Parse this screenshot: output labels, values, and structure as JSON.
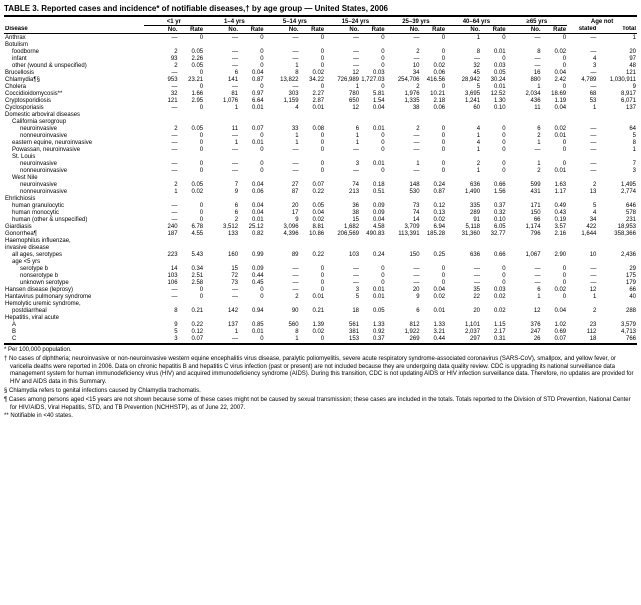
{
  "title": "TABLE 3. Reported cases and incidence* of notifiable diseases,† by age group — United States, 2006",
  "age_groups": [
    "<1 yr",
    "1–4 yrs",
    "5–14 yrs",
    "15–24 yrs",
    "25–39 yrs",
    "40–64 yrs",
    "≥65 yrs",
    "Age not"
  ],
  "sub_headers": [
    "No.",
    "Rate",
    "No.",
    "Rate",
    "No.",
    "Rate",
    "No.",
    "Rate",
    "No.",
    "Rate",
    "No.",
    "Rate",
    "No.",
    "Rate",
    "stated",
    "Total"
  ],
  "disease_label": "Disease",
  "rows": [
    {
      "name": "Anthrax",
      "indent": 0,
      "cells": [
        "—",
        "0",
        "—",
        "0",
        "—",
        "0",
        "—",
        "0",
        "—",
        "0",
        "1",
        "0",
        "—",
        "0",
        "—",
        "1"
      ]
    },
    {
      "name": "Botulism",
      "indent": 0,
      "cells": [
        "",
        "",
        "",
        "",
        "",
        "",
        "",
        "",
        "",
        "",
        "",
        "",
        "",
        "",
        "",
        ""
      ]
    },
    {
      "name": "foodborne",
      "indent": 1,
      "cells": [
        "2",
        "0.05",
        "—",
        "0",
        "—",
        "0",
        "—",
        "0",
        "2",
        "0",
        "8",
        "0.01",
        "8",
        "0.02",
        "—",
        "20"
      ]
    },
    {
      "name": "infant",
      "indent": 1,
      "cells": [
        "93",
        "2.26",
        "—",
        "0",
        "—",
        "0",
        "—",
        "0",
        "—",
        "0",
        "—",
        "0",
        "—",
        "0",
        "4",
        "97"
      ]
    },
    {
      "name": "other (wound & unspecified)",
      "indent": 1,
      "cells": [
        "2",
        "0.05",
        "—",
        "0",
        "1",
        "0",
        "—",
        "0",
        "10",
        "0.02",
        "32",
        "0.03",
        "—",
        "0",
        "3",
        "48"
      ]
    },
    {
      "name": "Brucellosis",
      "indent": 0,
      "cells": [
        "—",
        "0",
        "6",
        "0.04",
        "8",
        "0.02",
        "12",
        "0.03",
        "34",
        "0.06",
        "45",
        "0.05",
        "16",
        "0.04",
        "—",
        "121"
      ]
    },
    {
      "name": "Chlamydia¶§",
      "indent": 0,
      "cells": [
        "953",
        "23.21",
        "141",
        "0.87",
        "13,822",
        "34.22",
        "726,989",
        "1,727.03",
        "254,706",
        "416.56",
        "28,942",
        "30.24",
        "880",
        "2.42",
        "4,789",
        "1,030,911"
      ]
    },
    {
      "name": "Cholera",
      "indent": 0,
      "cells": [
        "—",
        "0",
        "—",
        "0",
        "—",
        "0",
        "1",
        "0",
        "2",
        "0",
        "5",
        "0.01",
        "1",
        "0",
        "—",
        "9"
      ]
    },
    {
      "name": "Coccidioidomycosis**",
      "indent": 0,
      "cells": [
        "32",
        "1.66",
        "81",
        "0.97",
        "303",
        "2.27",
        "780",
        "5.81",
        "1,976",
        "10.21",
        "3,695",
        "12.52",
        "2,034",
        "18.69",
        "68",
        "8,917"
      ]
    },
    {
      "name": "Cryptosporidiosis",
      "indent": 0,
      "cells": [
        "121",
        "2.95",
        "1,076",
        "6.64",
        "1,159",
        "2.87",
        "650",
        "1.54",
        "1,335",
        "2.18",
        "1,241",
        "1.30",
        "436",
        "1.19",
        "53",
        "6,071"
      ]
    },
    {
      "name": "Cyclosporiasis",
      "indent": 0,
      "cells": [
        "—",
        "0",
        "1",
        "0.01",
        "4",
        "0.01",
        "12",
        "0.04",
        "38",
        "0.06",
        "60",
        "0.10",
        "11",
        "0.04",
        "1",
        "137"
      ]
    },
    {
      "name": "Domestic arboviral diseases",
      "indent": 0,
      "cells": [
        "",
        "",
        "",
        "",
        "",
        "",
        "",
        "",
        "",
        "",
        "",
        "",
        "",
        "",
        "",
        ""
      ]
    },
    {
      "name": "California serogroup",
      "indent": 1,
      "cells": [
        "",
        "",
        "",
        "",
        "",
        "",
        "",
        "",
        "",
        "",
        "",
        "",
        "",
        "",
        "",
        ""
      ]
    },
    {
      "name": "neuroinvasive",
      "indent": 2,
      "cells": [
        "2",
        "0.05",
        "11",
        "0.07",
        "33",
        "0.08",
        "6",
        "0.01",
        "2",
        "0",
        "4",
        "0",
        "6",
        "0.02",
        "—",
        "64"
      ]
    },
    {
      "name": "nonneuroinvasive",
      "indent": 2,
      "cells": [
        "—",
        "0",
        "—",
        "0",
        "1",
        "0",
        "1",
        "0",
        "—",
        "0",
        "1",
        "0",
        "2",
        "0.01",
        "—",
        "5"
      ]
    },
    {
      "name": "eastern equine, neuroinvasive",
      "indent": 1,
      "cells": [
        "—",
        "0",
        "1",
        "0.01",
        "1",
        "0",
        "1",
        "0",
        "—",
        "0",
        "4",
        "0",
        "1",
        "0",
        "—",
        "8"
      ]
    },
    {
      "name": "Powassan, neuroinvasive",
      "indent": 1,
      "cells": [
        "—",
        "0",
        "—",
        "0",
        "—",
        "0",
        "—",
        "0",
        "—",
        "0",
        "1",
        "0",
        "—",
        "0",
        "—",
        "1"
      ]
    },
    {
      "name": "St. Louis",
      "indent": 1,
      "cells": [
        "",
        "",
        "",
        "",
        "",
        "",
        "",
        "",
        "",
        "",
        "",
        "",
        "",
        "",
        "",
        ""
      ]
    },
    {
      "name": "neuroinvasive",
      "indent": 2,
      "cells": [
        "—",
        "0",
        "—",
        "0",
        "—",
        "0",
        "3",
        "0.01",
        "1",
        "0",
        "2",
        "0",
        "1",
        "0",
        "—",
        "7"
      ]
    },
    {
      "name": "nonneuroinvasive",
      "indent": 2,
      "cells": [
        "—",
        "0",
        "—",
        "0",
        "—",
        "0",
        "—",
        "0",
        "—",
        "0",
        "1",
        "0",
        "2",
        "0.01",
        "—",
        "3"
      ]
    },
    {
      "name": "West Nile",
      "indent": 1,
      "cells": [
        "",
        "",
        "",
        "",
        "",
        "",
        "",
        "",
        "",
        "",
        "",
        "",
        "",
        "",
        "",
        ""
      ]
    },
    {
      "name": "neuroinvasive",
      "indent": 2,
      "cells": [
        "2",
        "0.05",
        "7",
        "0.04",
        "27",
        "0.07",
        "74",
        "0.18",
        "148",
        "0.24",
        "636",
        "0.66",
        "599",
        "1.63",
        "2",
        "1,495"
      ]
    },
    {
      "name": "nonneuroinvasive",
      "indent": 2,
      "cells": [
        "1",
        "0.02",
        "9",
        "0.06",
        "87",
        "0.22",
        "213",
        "0.51",
        "530",
        "0.87",
        "1,490",
        "1.56",
        "431",
        "1.17",
        "13",
        "2,774"
      ]
    },
    {
      "name": "Ehrlichiosis",
      "indent": 0,
      "cells": [
        "",
        "",
        "",
        "",
        "",
        "",
        "",
        "",
        "",
        "",
        "",
        "",
        "",
        "",
        "",
        ""
      ]
    },
    {
      "name": "human granulocytic",
      "indent": 1,
      "cells": [
        "—",
        "0",
        "6",
        "0.04",
        "20",
        "0.05",
        "36",
        "0.09",
        "73",
        "0.12",
        "335",
        "0.37",
        "171",
        "0.49",
        "5",
        "646"
      ]
    },
    {
      "name": "human monocytic",
      "indent": 1,
      "cells": [
        "—",
        "0",
        "6",
        "0.04",
        "17",
        "0.04",
        "38",
        "0.09",
        "74",
        "0.13",
        "289",
        "0.32",
        "150",
        "0.43",
        "4",
        "578"
      ]
    },
    {
      "name": "human (other & unspecified)",
      "indent": 1,
      "cells": [
        "—",
        "0",
        "2",
        "0.01",
        "9",
        "0.02",
        "15",
        "0.04",
        "14",
        "0.02",
        "91",
        "0.10",
        "66",
        "0.19",
        "34",
        "231"
      ]
    },
    {
      "name": "Giardiasis",
      "indent": 0,
      "cells": [
        "240",
        "6.78",
        "3,512",
        "25.12",
        "3,096",
        "8.81",
        "1,682",
        "4.58",
        "3,709",
        "6.94",
        "5,118",
        "6.05",
        "1,174",
        "3.57",
        "422",
        "18,953"
      ]
    },
    {
      "name": "Gonorrhea¶",
      "indent": 0,
      "cells": [
        "187",
        "4.55",
        "133",
        "0.82",
        "4,396",
        "10.86",
        "206,569",
        "490.83",
        "113,391",
        "185.28",
        "31,360",
        "32.77",
        "796",
        "2.16",
        "1,644",
        "358,366"
      ]
    },
    {
      "name": "Haemophilus influenzae,",
      "indent": 0,
      "cells": [
        "",
        "",
        "",
        "",
        "",
        "",
        "",
        "",
        "",
        "",
        "",
        "",
        "",
        "",
        "",
        ""
      ]
    },
    {
      "name": "invasive disease",
      "indent": 0,
      "cells": [
        "",
        "",
        "",
        "",
        "",
        "",
        "",
        "",
        "",
        "",
        "",
        "",
        "",
        "",
        "",
        ""
      ]
    },
    {
      "name": "all ages, serotypes",
      "indent": 1,
      "cells": [
        "223",
        "5.43",
        "160",
        "0.99",
        "89",
        "0.22",
        "103",
        "0.24",
        "150",
        "0.25",
        "636",
        "0.66",
        "1,067",
        "2.90",
        "10",
        "2,436"
      ]
    },
    {
      "name": "age <5 yrs",
      "indent": 1,
      "cells": [
        "",
        "",
        "",
        "",
        "",
        "",
        "",
        "",
        "",
        "",
        "",
        "",
        "",
        "",
        "",
        ""
      ]
    },
    {
      "name": "serotype b",
      "indent": 2,
      "cells": [
        "14",
        "0.34",
        "15",
        "0.09",
        "—",
        "0",
        "—",
        "0",
        "—",
        "0",
        "—",
        "0",
        "—",
        "0",
        "—",
        "29"
      ]
    },
    {
      "name": "nonserotype b",
      "indent": 2,
      "cells": [
        "103",
        "2.51",
        "72",
        "0.44",
        "—",
        "0",
        "—",
        "0",
        "—",
        "0",
        "—",
        "0",
        "—",
        "0",
        "—",
        "175"
      ]
    },
    {
      "name": "unknown serotype",
      "indent": 2,
      "cells": [
        "106",
        "2.58",
        "73",
        "0.45",
        "—",
        "0",
        "—",
        "0",
        "—",
        "0",
        "—",
        "0",
        "—",
        "0",
        "—",
        "179"
      ]
    },
    {
      "name": "Hansen disease (leprosy)",
      "indent": 0,
      "cells": [
        "—",
        "0",
        "—",
        "0",
        "—",
        "0",
        "3",
        "0.01",
        "20",
        "0.04",
        "35",
        "0.03",
        "6",
        "0.02",
        "12",
        "66"
      ]
    },
    {
      "name": "Hantavirus pulmonary syndrome",
      "indent": 0,
      "cells": [
        "—",
        "0",
        "—",
        "0",
        "2",
        "0.01",
        "5",
        "0.01",
        "9",
        "0.02",
        "22",
        "0.02",
        "1",
        "0",
        "1",
        "40"
      ]
    },
    {
      "name": "Hemolytic uremic syndrome,",
      "indent": 0,
      "cells": [
        "",
        "",
        "",
        "",
        "",
        "",
        "",
        "",
        "",
        "",
        "",
        "",
        "",
        "",
        "",
        ""
      ]
    },
    {
      "name": "postdiarrheal",
      "indent": 1,
      "cells": [
        "8",
        "0.21",
        "142",
        "0.94",
        "90",
        "0.21",
        "18",
        "0.05",
        "6",
        "0.01",
        "20",
        "0.02",
        "12",
        "0.04",
        "2",
        "288"
      ]
    },
    {
      "name": "Hepatitis, viral acute",
      "indent": 0,
      "cells": [
        "",
        "",
        "",
        "",
        "",
        "",
        "",
        "",
        "",
        "",
        "",
        "",
        "",
        "",
        "",
        ""
      ]
    },
    {
      "name": "A",
      "indent": 1,
      "cells": [
        "9",
        "0.22",
        "137",
        "0.85",
        "560",
        "1.39",
        "561",
        "1.33",
        "812",
        "1.33",
        "1,101",
        "1.15",
        "376",
        "1.02",
        "23",
        "3,579"
      ]
    },
    {
      "name": "B",
      "indent": 1,
      "cells": [
        "5",
        "0.12",
        "1",
        "0.01",
        "8",
        "0.02",
        "381",
        "0.92",
        "1,922",
        "3.21",
        "2,037",
        "2.17",
        "247",
        "0.69",
        "112",
        "4,713"
      ]
    },
    {
      "name": "C",
      "indent": 1,
      "cells": [
        "3",
        "0.07",
        "—",
        "0",
        "1",
        "0",
        "153",
        "0.37",
        "269",
        "0.44",
        "297",
        "0.31",
        "26",
        "0.07",
        "18",
        "766"
      ]
    }
  ],
  "footnotes": [
    "* Per 100,000 population.",
    "† No cases of diphtheria; neuroinvasive or non-neuroinvasive western equine encephalitis virus disease, paralytic poliomyelitis, severe acute respiratory syndrome-associated coronavirus (SARS-CoV), smallpox, and yellow fever, or varicella deaths were reported in 2006. Data on chronic hepatitis B and hepatitis C virus infection (past or present) are not included because they are undergoing data quality review. CDC is upgrading its national surveillance data management system for human immunodeficiency virus (HIV) and acquired immunodeficiency syndrome (AIDS). During this transition, CDC is not updating AIDS or HIV infection surveillance data. Therefore, no updates are provided for HIV and AIDS data in this Summary.",
    "§ Chlamydia refers to genital infections caused by Chlamydia trachomatis.",
    "¶ Cases among persons aged <15 years are not shown because some of these cases might not be caused by sexual transmission; these cases are included in the totals. Totals reported to the Division of STD Prevention, National Center for HIV/AIDS, Viral Hepatitis, STD, and TB Prevention (NCHHSTP), as of June 22, 2007.",
    "** Notifiable in <40 states."
  ],
  "colors": {
    "background": "#ffffff",
    "text": "#000000",
    "rule": "#000000"
  },
  "col_widths": {
    "disease": 120,
    "no_col": 30,
    "rate_col": 22,
    "stated": 26,
    "total": 34
  }
}
